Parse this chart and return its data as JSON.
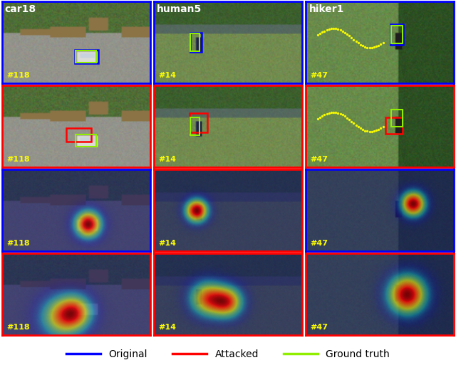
{
  "figsize": [
    6.4,
    5.2
  ],
  "dpi": 100,
  "cell_border_colors": [
    [
      "blue",
      "blue",
      "blue"
    ],
    [
      "red",
      "red",
      "red"
    ],
    [
      "blue",
      "red",
      "blue"
    ],
    [
      "red",
      "red",
      "red"
    ]
  ],
  "legend_items": [
    {
      "label": "Original",
      "color": "blue"
    },
    {
      "label": "Attacked",
      "color": "red"
    },
    {
      "label": "Ground truth",
      "color": "#90ee00"
    }
  ],
  "col_titles": [
    "car18",
    "human5",
    "hiker1"
  ],
  "frame_labels": [
    [
      "#118",
      "#14",
      "#47"
    ],
    [
      "#118",
      "#14",
      "#47"
    ],
    [
      "#118",
      "#14",
      "#47"
    ],
    [
      "#118",
      "#14",
      "#47"
    ]
  ],
  "frame_label_color": "yellow",
  "background_color": "white",
  "legend_fontsize": 10,
  "col_title_fontsize": 10,
  "frame_label_fontsize": 8,
  "border_linewidth": 2.0
}
